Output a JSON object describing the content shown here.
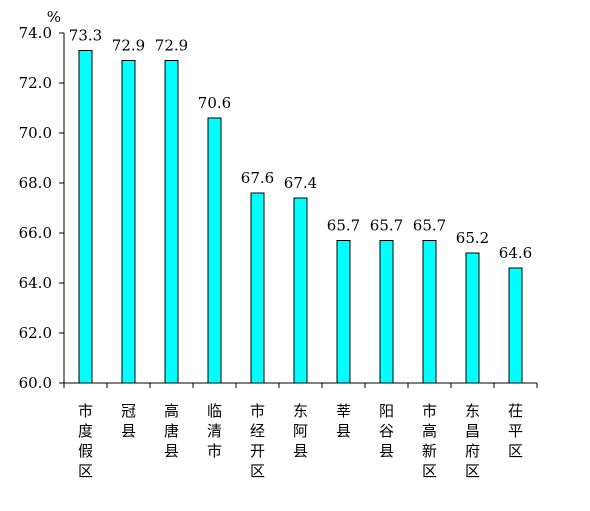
{
  "chart_data": {
    "type": "bar",
    "unit": "%",
    "categories": [
      "市度假区",
      "冠县",
      "高唐县",
      "临清市",
      "市经开区",
      "东阿县",
      "莘县",
      "阳谷县",
      "市高新区",
      "东昌府区",
      "茌平区"
    ],
    "values": [
      73.3,
      72.9,
      72.9,
      70.6,
      67.6,
      67.4,
      65.7,
      65.7,
      65.7,
      65.2,
      64.6
    ],
    "value_labels": [
      "73.3",
      "72.9",
      "72.9",
      "70.6",
      "67.6",
      "67.4",
      "65.7",
      "65.7",
      "65.7",
      "65.2",
      "64.6"
    ],
    "ylim": [
      60,
      74
    ],
    "yticks": [
      60,
      62,
      64,
      66,
      68,
      70,
      72,
      74
    ],
    "ytick_labels": [
      "60.0",
      "62.0",
      "64.0",
      "66.0",
      "68.0",
      "70.0",
      "72.0",
      "74.0"
    ],
    "bar_color": "#00ffff",
    "bar_edge_color": "#000000",
    "grid": false,
    "legend": "none"
  }
}
